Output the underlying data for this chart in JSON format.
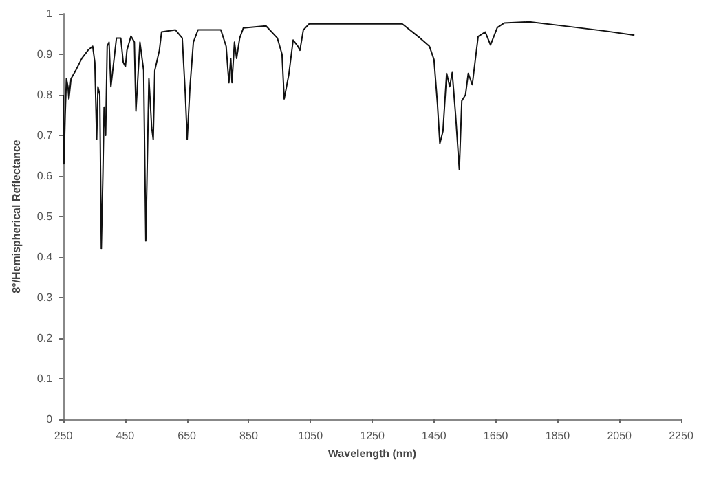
{
  "chart_data": {
    "type": "line",
    "xlabel": "Wavelength (nm)",
    "ylabel": "8°/Hemispherical Reflectance",
    "xlim": [
      250,
      2250
    ],
    "xticks": [
      250,
      450,
      650,
      850,
      1050,
      1250,
      1450,
      1650,
      1850,
      2050,
      2250
    ],
    "ylim": [
      0,
      1
    ],
    "yticks": [
      0,
      0.1,
      0.2,
      0.3,
      0.4,
      0.5,
      0.6,
      0.7,
      0.8,
      0.9,
      1
    ],
    "grid": false,
    "marker": "none",
    "line_style": "solid",
    "series": [
      {
        "color": "#111111",
        "x": [
          250,
          252,
          256,
          260,
          265,
          268,
          275,
          290,
          310,
          330,
          345,
          352,
          358,
          362,
          368,
          373,
          378,
          382,
          387,
          392,
          398,
          404,
          422,
          436,
          444,
          451,
          456,
          469,
          480,
          485,
          498,
          510,
          517,
          527,
          536,
          541,
          546,
          561,
          568,
          613,
          635,
          645,
          651,
          660,
          671,
          686,
          760,
          777,
          786,
          792,
          796,
          804,
          811,
          821,
          833,
          906,
          943,
          958,
          965,
          980,
          994,
          1009,
          1016,
          1027,
          1046,
          1347,
          1405,
          1435,
          1450,
          1461,
          1469,
          1479,
          1491,
          1501,
          1509,
          1520,
          1532,
          1540,
          1552,
          1561,
          1574,
          1593,
          1616,
          1633,
          1655,
          1677,
          1758,
          1890,
          2008,
          2099
        ],
        "values": [
          0.8,
          0.63,
          0.75,
          0.84,
          0.82,
          0.79,
          0.84,
          0.86,
          0.89,
          0.91,
          0.92,
          0.88,
          0.69,
          0.82,
          0.8,
          0.42,
          0.6,
          0.77,
          0.7,
          0.92,
          0.93,
          0.82,
          0.94,
          0.94,
          0.88,
          0.87,
          0.91,
          0.945,
          0.93,
          0.76,
          0.93,
          0.86,
          0.44,
          0.84,
          0.72,
          0.69,
          0.86,
          0.91,
          0.955,
          0.96,
          0.94,
          0.8,
          0.69,
          0.82,
          0.93,
          0.96,
          0.96,
          0.92,
          0.83,
          0.89,
          0.83,
          0.93,
          0.89,
          0.94,
          0.965,
          0.97,
          0.94,
          0.9,
          0.79,
          0.85,
          0.935,
          0.92,
          0.91,
          0.96,
          0.975,
          0.975,
          0.94,
          0.92,
          0.887,
          0.78,
          0.68,
          0.71,
          0.853,
          0.82,
          0.855,
          0.75,
          0.616,
          0.785,
          0.8,
          0.853,
          0.825,
          0.944,
          0.955,
          0.923,
          0.966,
          0.977,
          0.98,
          0.968,
          0.957,
          0.947
        ]
      }
    ]
  }
}
